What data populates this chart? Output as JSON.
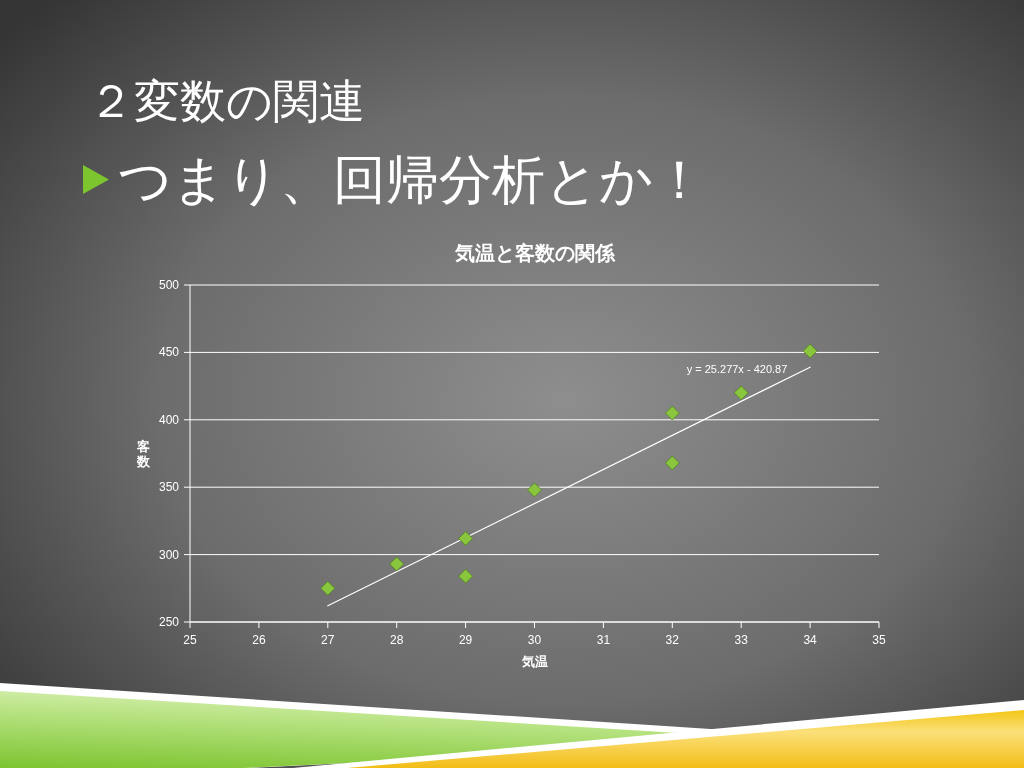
{
  "chart_data": {
    "type": "scatter",
    "title": "気温と客数の関係",
    "xlabel": "気温",
    "ylabel": "客数",
    "annotations": [
      "２変数の関連",
      "つまり、回帰分析とか！",
      "y = 25.277x - 420.87"
    ],
    "series": [
      {
        "color": "#8ac53e",
        "marker": "diamond",
        "x": [
          27,
          28,
          29,
          29,
          30,
          32,
          32,
          33,
          34
        ],
        "values": [
          275,
          293,
          312,
          284,
          348,
          405,
          368,
          420,
          451
        ]
      },
      {
        "type": "line",
        "color": "#ffffff",
        "x": [
          27,
          34
        ],
        "values": [
          262,
          439
        ]
      }
    ],
    "xlim": [
      25,
      35
    ],
    "ylim": [
      250,
      500
    ],
    "xticks": [
      25,
      26,
      27,
      28,
      29,
      30,
      31,
      32,
      33,
      34,
      35
    ],
    "yticks": [
      250,
      300,
      350,
      400,
      450,
      500
    ],
    "grid": "y"
  }
}
